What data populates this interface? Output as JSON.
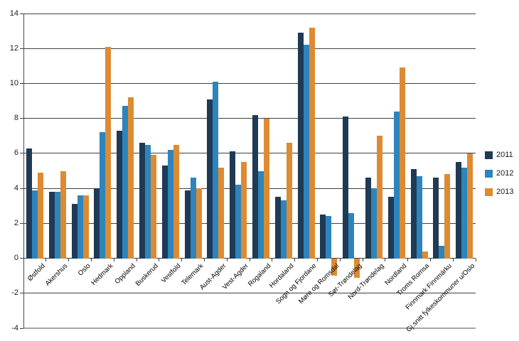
{
  "chart_data": {
    "type": "bar",
    "title": "",
    "xlabel": "",
    "ylabel": "",
    "ylim": [
      -4,
      14
    ],
    "ytick_step": 2,
    "grid": true,
    "legend_position": "right",
    "categories": [
      "Østfold",
      "Akershus",
      "Oslo",
      "Hedmark",
      "Oppland",
      "Buskerud",
      "Vestfold",
      "Telemark",
      "Aust-Agder",
      "Vest-Agder",
      "Rogaland",
      "Hordaland",
      "Sogn og Fjordane",
      "Møre og Romsdal",
      "Sør-Trøndelag",
      "Nord-Trøndelag",
      "Nordland",
      "Troms Romsa",
      "Finnmark Finnmárku",
      "Gj.snitt fylkeskommuner u/Oslo"
    ],
    "series": [
      {
        "name": "2011",
        "color": "#1F3A55",
        "values": [
          6.3,
          3.8,
          3.1,
          4.0,
          7.3,
          6.6,
          5.3,
          3.9,
          9.1,
          6.1,
          8.2,
          3.5,
          12.9,
          2.5,
          8.1,
          4.6,
          3.5,
          5.1,
          4.6,
          5.5
        ]
      },
      {
        "name": "2012",
        "color": "#2E84BC",
        "values": [
          3.9,
          3.8,
          3.6,
          7.2,
          8.7,
          6.5,
          6.2,
          4.6,
          10.1,
          4.2,
          5.0,
          3.3,
          12.2,
          2.4,
          2.6,
          4.0,
          8.4,
          4.7,
          0.7,
          5.2
        ]
      },
      {
        "name": "2013",
        "color": "#DD8B33",
        "values": [
          4.9,
          5.0,
          3.6,
          12.1,
          9.2,
          5.9,
          6.5,
          4.0,
          5.2,
          5.5,
          8.0,
          6.6,
          13.2,
          -1.0,
          -1.1,
          7.0,
          10.9,
          0.4,
          4.8,
          6.0
        ]
      }
    ],
    "colors": {
      "gridline": "#3f3f3f",
      "bottom_line": "#a6a6a6",
      "axis": "#4a4a4a",
      "text": "#1a1a1a"
    }
  }
}
